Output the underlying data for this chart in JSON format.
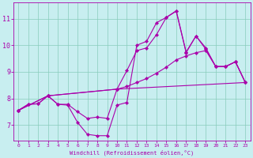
{
  "xlabel": "Windchill (Refroidissement éolien,°C)",
  "bg_color": "#c8eef0",
  "line_color": "#aa00aa",
  "grid_color": "#88ccbb",
  "xlim": [
    -0.5,
    23.5
  ],
  "ylim": [
    6.4,
    11.6
  ],
  "xticks": [
    0,
    1,
    2,
    3,
    4,
    5,
    6,
    7,
    8,
    9,
    10,
    11,
    12,
    13,
    14,
    15,
    16,
    17,
    18,
    19,
    20,
    21,
    22,
    23
  ],
  "yticks": [
    7,
    8,
    9,
    10,
    11
  ],
  "line1_x": [
    0,
    1,
    2,
    3,
    4,
    5,
    6,
    7,
    8,
    9,
    10,
    11,
    12,
    13,
    14,
    15,
    16,
    17,
    18,
    19,
    20,
    21,
    22,
    23
  ],
  "line1_y": [
    7.55,
    7.78,
    7.8,
    8.1,
    7.78,
    7.75,
    7.1,
    6.65,
    6.6,
    6.6,
    7.75,
    7.85,
    10.0,
    10.15,
    10.85,
    11.05,
    11.3,
    9.75,
    10.35,
    9.85,
    9.2,
    9.2,
    9.38,
    8.6
  ],
  "line2_x": [
    0,
    1,
    2,
    3,
    4,
    5,
    6,
    7,
    8,
    9,
    10,
    11,
    12,
    13,
    14,
    15,
    16,
    17,
    18,
    19,
    20,
    21,
    22,
    23
  ],
  "line2_y": [
    7.55,
    7.78,
    7.8,
    8.1,
    7.78,
    7.78,
    7.5,
    7.25,
    7.3,
    7.25,
    8.35,
    9.05,
    9.8,
    9.9,
    10.4,
    11.05,
    11.28,
    9.72,
    10.35,
    9.9,
    9.2,
    9.2,
    9.38,
    8.6
  ],
  "line3_x": [
    0,
    3,
    10,
    11,
    12,
    13,
    14,
    15,
    16,
    17,
    18,
    19,
    20,
    21,
    22,
    23
  ],
  "line3_y": [
    7.55,
    8.1,
    8.35,
    8.45,
    8.6,
    8.75,
    8.95,
    9.18,
    9.45,
    9.6,
    9.72,
    9.8,
    9.2,
    9.2,
    9.38,
    8.6
  ],
  "line4_x": [
    0,
    3,
    10,
    23
  ],
  "line4_y": [
    7.55,
    8.1,
    8.35,
    8.6
  ]
}
